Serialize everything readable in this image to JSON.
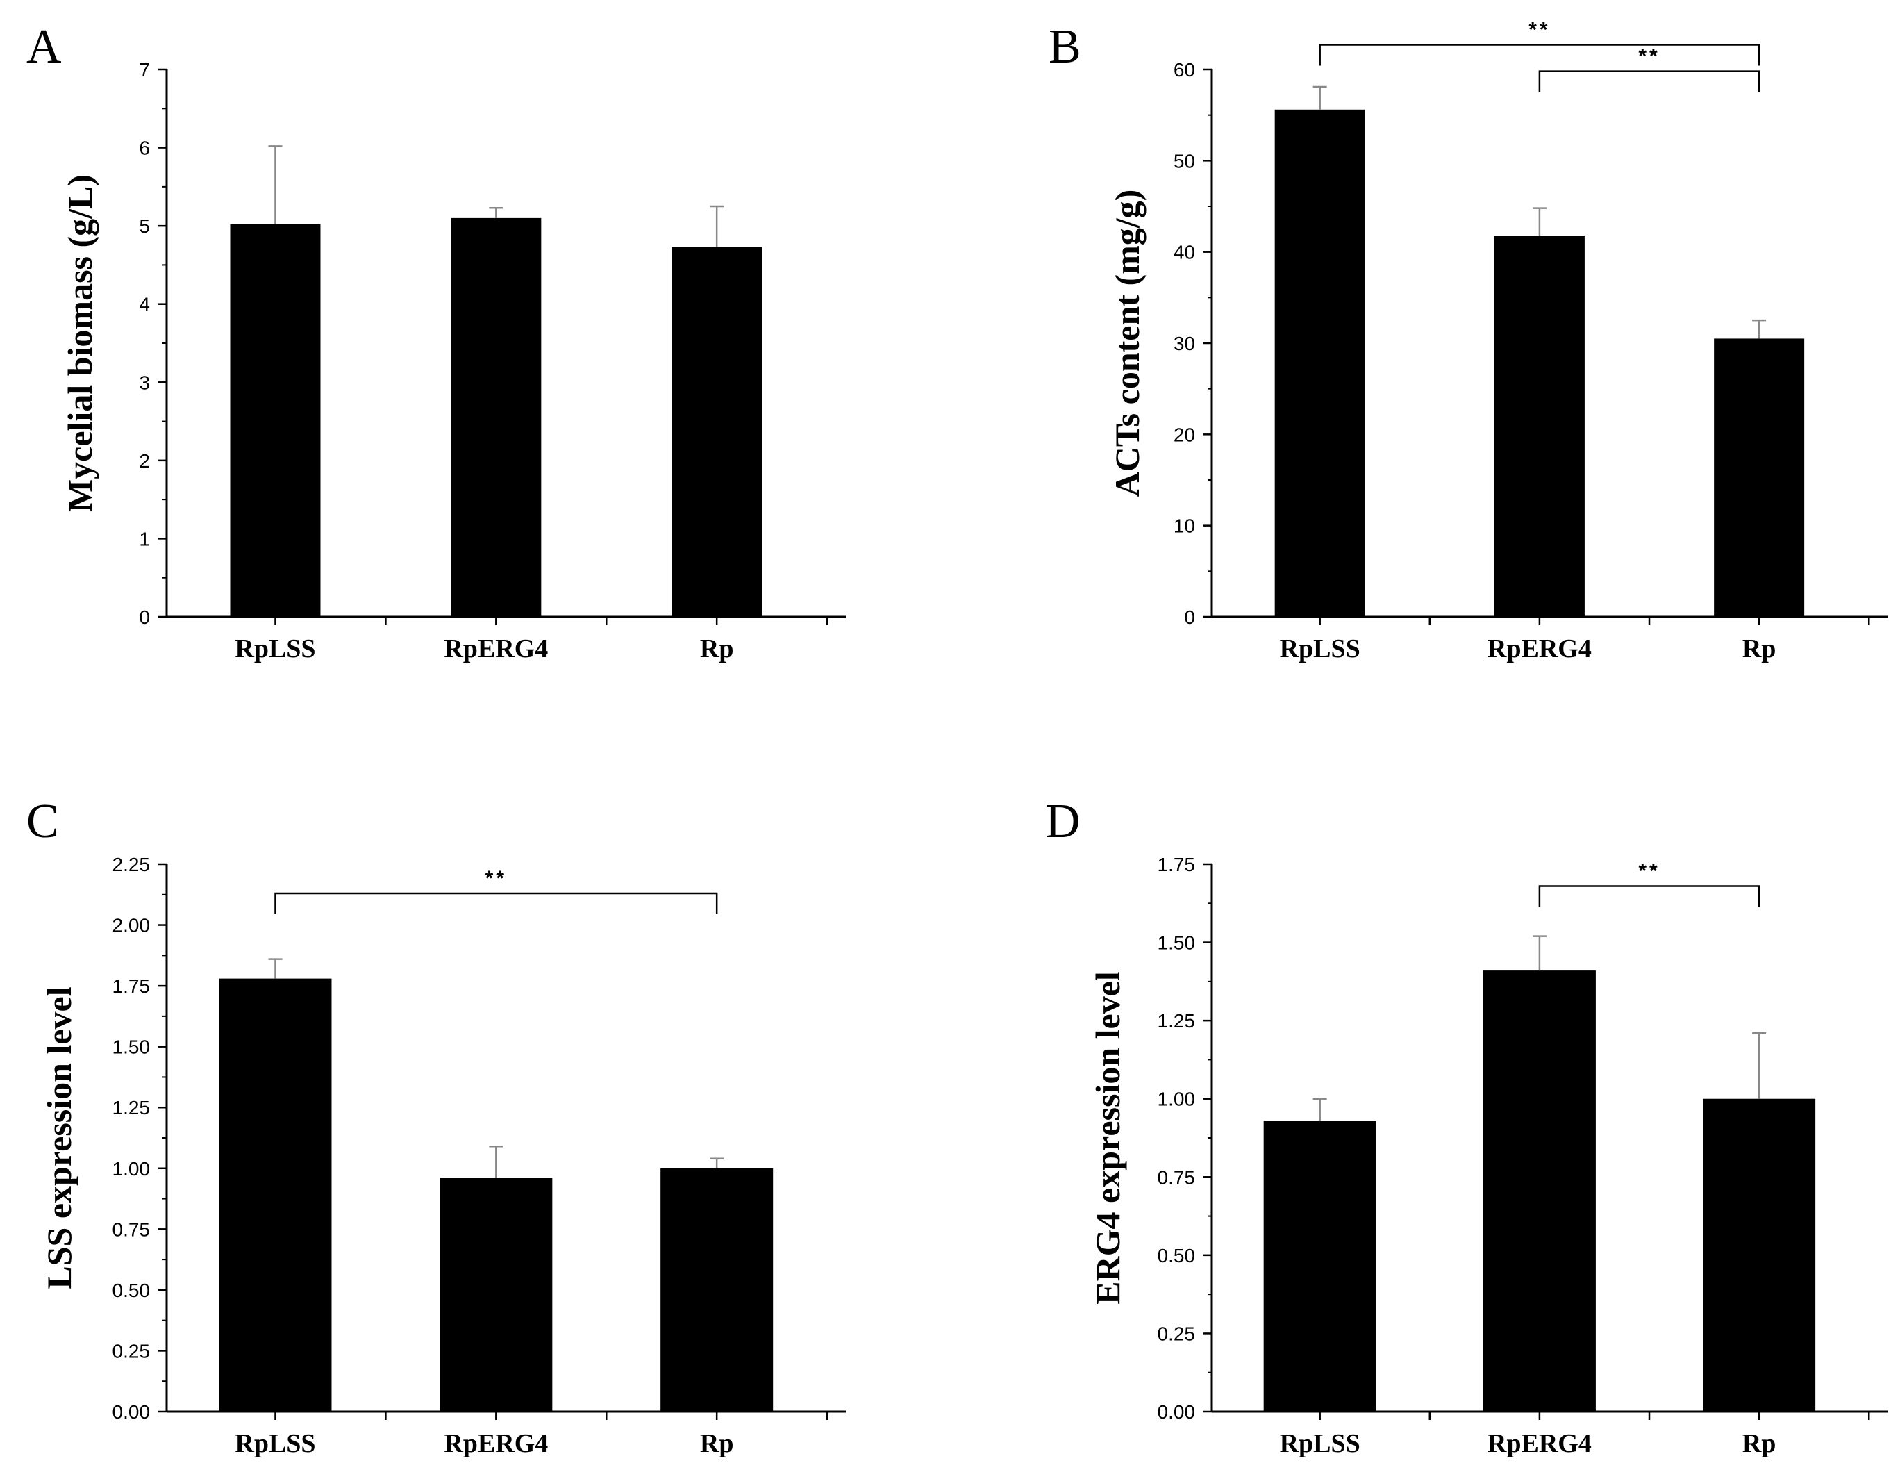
{
  "colors": {
    "bar": "#000000",
    "axis": "#000000",
    "errorbar": "#888888",
    "background": "#ffffff"
  },
  "chart_data": [
    {
      "type": "bar",
      "panel": "A",
      "categories": [
        "RpLSS",
        "RpERG4",
        "Rp"
      ],
      "values": [
        5.02,
        5.1,
        4.73
      ],
      "errors": [
        1.0,
        0.13,
        0.52
      ],
      "ylabel": "Mycelial biomass (g/L)",
      "xlabel": "",
      "ylim": [
        0,
        7
      ],
      "yticks": [
        0,
        1,
        2,
        3,
        4,
        5,
        6,
        7
      ],
      "ytick_labels": [
        "0",
        "1",
        "2",
        "3",
        "4",
        "5",
        "6",
        "7"
      ],
      "significance": []
    },
    {
      "type": "bar",
      "panel": "B",
      "categories": [
        "RpLSS",
        "RpERG4",
        "Rp"
      ],
      "values": [
        55.6,
        41.8,
        30.5
      ],
      "errors": [
        2.5,
        3.0,
        2.0
      ],
      "ylabel": "ACTs content (mg/g)",
      "xlabel": "",
      "ylim": [
        0,
        60
      ],
      "yticks": [
        0,
        10,
        20,
        30,
        40,
        50,
        60
      ],
      "ytick_labels": [
        "0",
        "10",
        "20",
        "30",
        "40",
        "50",
        "60"
      ],
      "significance": [
        {
          "from": 0,
          "to": 2,
          "label": "**",
          "level": 62.7
        },
        {
          "from": 1,
          "to": 2,
          "label": "**",
          "level": 59.8
        }
      ]
    },
    {
      "type": "bar",
      "panel": "C",
      "categories": [
        "RpLSS",
        "RpERG4",
        "Rp"
      ],
      "values": [
        1.78,
        0.96,
        1.0
      ],
      "errors": [
        0.08,
        0.13,
        0.04
      ],
      "ylabel": "LSS expression level",
      "xlabel": "",
      "ylim": [
        0,
        2.25
      ],
      "yticks": [
        0,
        0.25,
        0.5,
        0.75,
        1.0,
        1.25,
        1.5,
        1.75,
        2.0,
        2.25
      ],
      "ytick_labels": [
        "0.00",
        "0.25",
        "0.50",
        "0.75",
        "1.00",
        "1.25",
        "1.50",
        "1.75",
        "2.00",
        "2.25"
      ],
      "significance": [
        {
          "from": 0,
          "to": 2,
          "label": "**",
          "level": 2.13
        }
      ]
    },
    {
      "type": "bar",
      "panel": "D",
      "categories": [
        "RpLSS",
        "RpERG4",
        "Rp"
      ],
      "values": [
        0.93,
        1.41,
        1.0
      ],
      "errors": [
        0.07,
        0.11,
        0.21
      ],
      "ylabel": "ERG4 expression level",
      "xlabel": "",
      "ylim": [
        0,
        1.75
      ],
      "yticks": [
        0,
        0.25,
        0.5,
        0.75,
        1.0,
        1.25,
        1.5,
        1.75
      ],
      "ytick_labels": [
        "0.00",
        "0.25",
        "0.50",
        "0.75",
        "1.00",
        "1.25",
        "1.50",
        "1.75"
      ],
      "significance": [
        {
          "from": 1,
          "to": 2,
          "label": "**",
          "level": 1.68
        }
      ]
    }
  ]
}
